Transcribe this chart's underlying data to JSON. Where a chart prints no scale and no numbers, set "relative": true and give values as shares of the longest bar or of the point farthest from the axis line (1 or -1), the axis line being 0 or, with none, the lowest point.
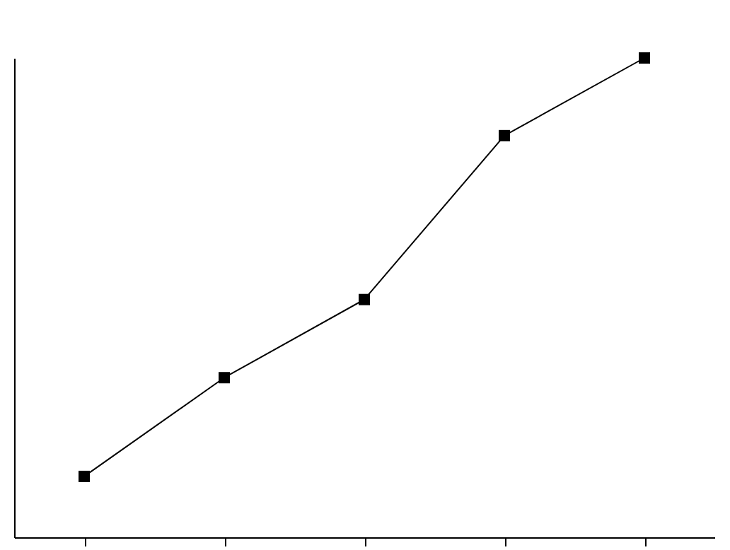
{
  "chart_data": {
    "type": "line",
    "relative": true,
    "categories": [
      null,
      null,
      null,
      null,
      null
    ],
    "series": [
      {
        "color": "#000000",
        "values": [
          0.127,
          0.333,
          0.496,
          0.838,
          1
        ]
      }
    ],
    "marker": "square",
    "line_style": "solid"
  }
}
